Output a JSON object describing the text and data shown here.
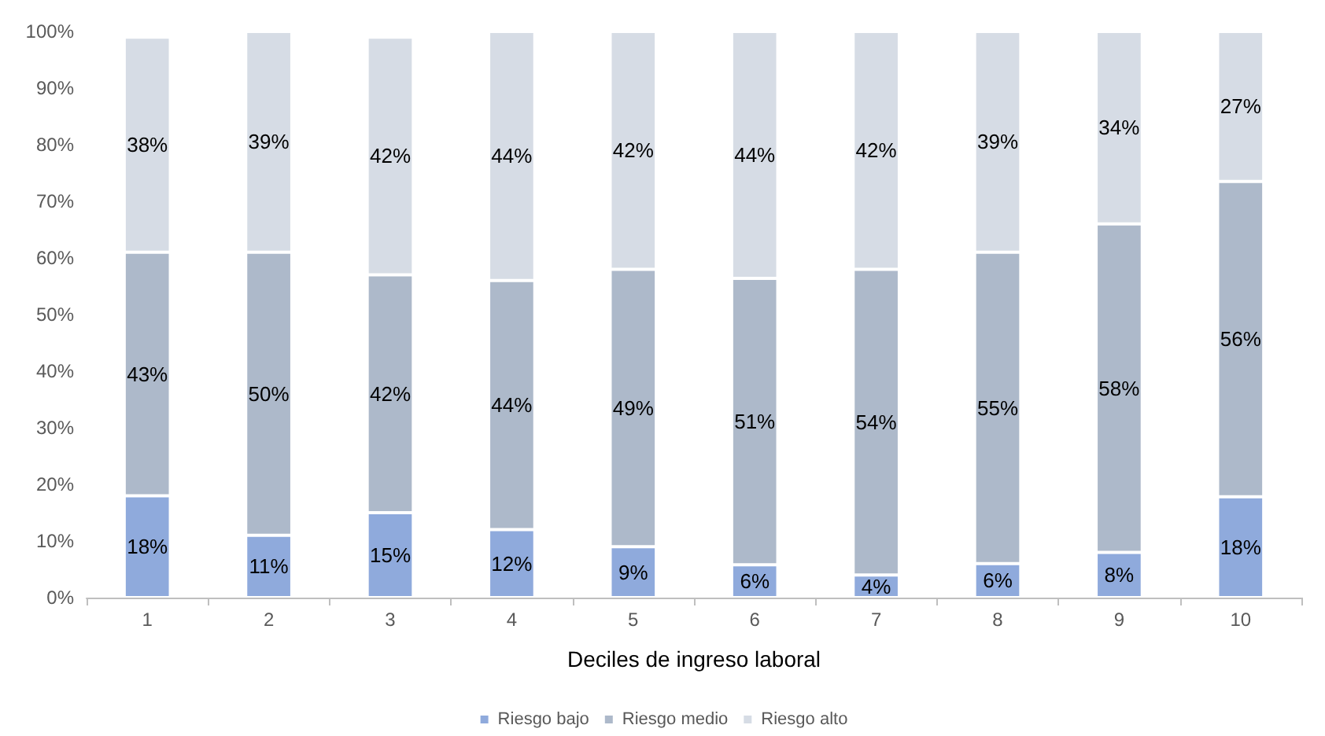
{
  "chart_data": {
    "type": "bar",
    "stacked": true,
    "xlabel": "Deciles de ingreso laboral",
    "categories": [
      "1",
      "2",
      "3",
      "4",
      "5",
      "6",
      "7",
      "8",
      "9",
      "10"
    ],
    "ylim": [
      0,
      100
    ],
    "yticks": [
      {
        "value": 0,
        "label": "0%"
      },
      {
        "value": 10,
        "label": "10%"
      },
      {
        "value": 20,
        "label": "20%"
      },
      {
        "value": 30,
        "label": "30%"
      },
      {
        "value": 40,
        "label": "40%"
      },
      {
        "value": 50,
        "label": "50%"
      },
      {
        "value": 60,
        "label": "60%"
      },
      {
        "value": 70,
        "label": "70%"
      },
      {
        "value": 80,
        "label": "80%"
      },
      {
        "value": 90,
        "label": "90%"
      },
      {
        "value": 100,
        "label": "100%"
      }
    ],
    "grid": false,
    "legend": "bottom",
    "series": [
      {
        "name": "Riesgo bajo",
        "color": "#8faadc",
        "values": [
          18,
          11,
          15,
          12,
          9,
          5.8,
          4,
          6,
          8,
          17.8
        ],
        "value_labels": [
          "18%",
          "11%",
          "15%",
          "12%",
          "9%",
          "6%",
          "4%",
          "6%",
          "8%",
          "18%"
        ]
      },
      {
        "name": "Riesgo medio",
        "color": "#adb9ca",
        "values": [
          43,
          50,
          42,
          44,
          49,
          50.6,
          54,
          55,
          58,
          55.7
        ],
        "value_labels": [
          "43%",
          "50%",
          "42%",
          "44%",
          "49%",
          "51%",
          "54%",
          "55%",
          "58%",
          "56%"
        ]
      },
      {
        "name": "Riesgo alto",
        "color": "#d6dce5",
        "values": [
          38,
          39,
          42,
          44,
          42,
          43.6,
          42,
          39,
          34,
          26.5
        ],
        "value_labels": [
          "38%",
          "39%",
          "42%",
          "44%",
          "42%",
          "44%",
          "42%",
          "39%",
          "34%",
          "27%"
        ]
      }
    ]
  }
}
